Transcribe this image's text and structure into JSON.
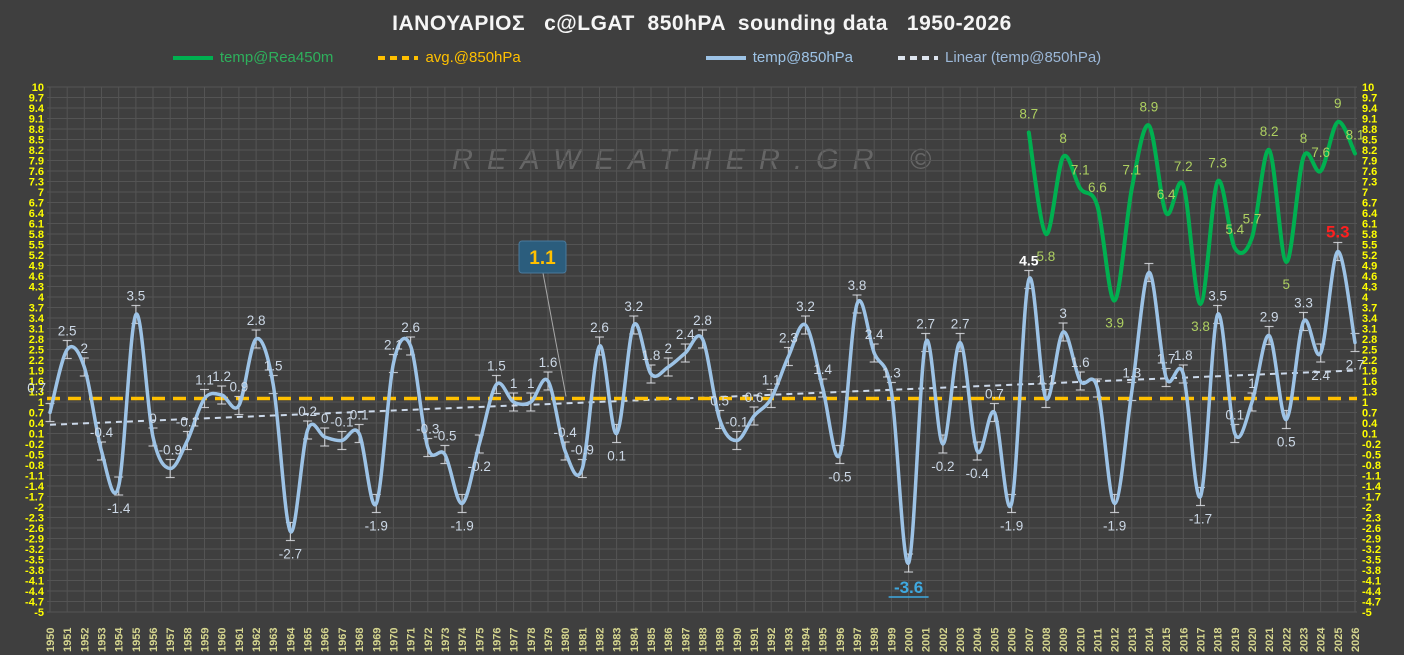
{
  "title": "ΙΑΝΟΥΑΡΙΟΣ   c@LGAT  850hPA  sounding data   1950-2026",
  "watermark": "REAWEATHER.GR ©",
  "legend": {
    "items": [
      {
        "label": "temp@Rea450m",
        "text_color": "#2eb05c",
        "line_color": "#00b050",
        "swatch": "solid"
      },
      {
        "label": "avg.@850hPa",
        "text_color": "#ffc000",
        "line_color": "#ffc000",
        "swatch": "dashed"
      },
      {
        "label": "temp@850hPa",
        "text_color": "#9dc3e6",
        "line_color": "#9dc3e6",
        "swatch": "solid"
      },
      {
        "label": "Linear (temp@850hPa)",
        "text_color": "#9cb8d8",
        "line_color": "#dde4ee",
        "swatch": "dashed"
      }
    ]
  },
  "callout": {
    "text": "1.1",
    "box_color": "#2b5d7d",
    "text_color": "#ffc000"
  },
  "chart_data": {
    "type": "line",
    "title": "ΙΑΝΟΥΑΡΙΟΣ c@LGAT 850hPA sounding data 1950-2026",
    "x_start": 1950,
    "x_end": 2026,
    "y_axis": {
      "min": -5,
      "max": 10,
      "step": 0.3,
      "tick_color": "#ffff00"
    },
    "x_tick_color": "#d6d68f",
    "grid_color": "#545454",
    "avg_line": {
      "name": "avg.@850hPa",
      "value": 1.1,
      "color": "#ffc000"
    },
    "trend_line": {
      "name": "Linear (temp@850hPa)",
      "start_value": 0.35,
      "end_value": 1.9,
      "color": "#ccd9ea"
    },
    "series": [
      {
        "name": "temp@850hPa",
        "color": "#9dc3e6",
        "label_color": "#ccd8e6",
        "start_year": 1950,
        "values": [
          0.7,
          2.5,
          2,
          -0.4,
          -1.4,
          3.5,
          0,
          -0.9,
          -0.1,
          1.1,
          1.2,
          0.9,
          2.8,
          1.5,
          -2.7,
          0.2,
          0,
          -0.1,
          0.1,
          -1.9,
          2.1,
          2.6,
          -0.3,
          -0.5,
          -1.9,
          -0.2,
          1.5,
          1,
          1,
          1.6,
          -0.4,
          -0.9,
          2.6,
          0.1,
          3.2,
          1.8,
          2,
          2.4,
          2.8,
          0.5,
          -0.1,
          0.6,
          1.1,
          2.3,
          3.2,
          1.4,
          -0.5,
          3.8,
          2.4,
          1.3,
          -3.6,
          2.7,
          -0.2,
          2.7,
          -0.4,
          0.7,
          -1.9,
          4.5,
          1.1,
          3,
          1.6,
          1.4,
          -1.9,
          1.3,
          4.7,
          1.7,
          1.8,
          -1.7,
          3.5,
          0.1,
          1,
          2.9,
          0.5,
          3.3,
          2.4,
          5.3,
          2.7
        ],
        "error_bars": true,
        "label_below_years": [
          1954,
          1964,
          1969,
          1974,
          1975,
          1983,
          1996,
          2000,
          2002,
          2004,
          2006,
          2012,
          2017,
          2022,
          2024,
          2026
        ],
        "hidden_label_years": [
          2011,
          2014
        ],
        "special_labels": {
          "2000": {
            "color": "#3fa9e0",
            "bold": true,
            "underline": true,
            "size": 17
          },
          "2007": {
            "color": "#ffffff",
            "bold": true,
            "size": 14
          },
          "2025": {
            "color": "#ff1f1f",
            "bold": true,
            "size": 17
          }
        }
      },
      {
        "name": "temp@Rea450m",
        "color": "#00b050",
        "label_color": "#aed061",
        "start_year": 2007,
        "values": [
          8.7,
          5.8,
          8,
          7.1,
          6.6,
          3.9,
          7.1,
          8.9,
          6.4,
          7.2,
          3.8,
          7.3,
          5.4,
          5.7,
          8.2,
          5,
          8,
          7.6,
          9,
          8.1
        ],
        "error_bars": false,
        "label_below_years": [
          2008,
          2012,
          2017,
          2022
        ],
        "hidden_label_years": [],
        "special_labels": {}
      }
    ]
  }
}
